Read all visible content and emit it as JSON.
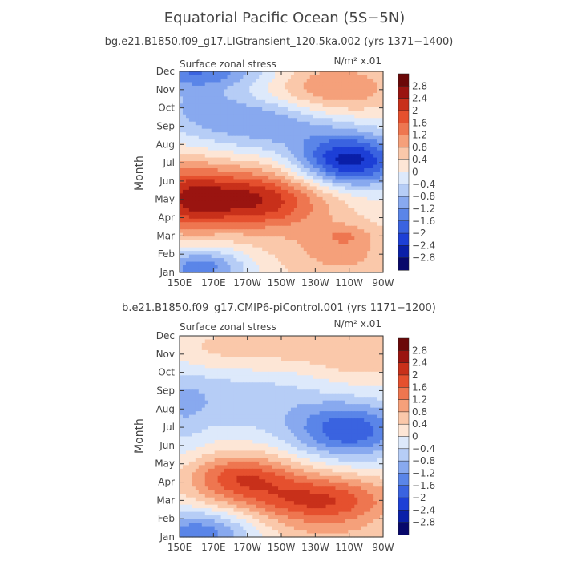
{
  "figure": {
    "title": "Equatorial Pacific Ocean (5S−5N)"
  },
  "colorbar_levels": [
    "2.8",
    "2.4",
    "2",
    "1.6",
    "1.2",
    "0.8",
    "0.4",
    "0",
    "−0.4",
    "−0.8",
    "−1.2",
    "−1.6",
    "−2",
    "−2.4",
    "−2.8"
  ],
  "palette": [
    "#08086b",
    "#0a1fa8",
    "#1d3fd6",
    "#3a63e0",
    "#5a85e8",
    "#88a9ef",
    "#b6cdf6",
    "#dde9fb",
    "#fde6d6",
    "#fac8aa",
    "#f5a07a",
    "#ee7650",
    "#e5502e",
    "#c8301a",
    "#9a1410",
    "#6b0808"
  ],
  "chart_data": [
    {
      "type": "contourf",
      "title": "bg.e21.B1850.f09_g17.LIGtransient_120.5ka.002 (yrs 1371−1400)",
      "left_label": "Surface zonal stress",
      "right_label": "N/m² x.01",
      "ylabel": "Month",
      "x_ticks": [
        "150E",
        "170E",
        "170W",
        "150W",
        "130W",
        "110W",
        "90W"
      ],
      "y_ticks": [
        "Jan",
        "Feb",
        "Mar",
        "Apr",
        "May",
        "Jun",
        "Jul",
        "Aug",
        "Sep",
        "Oct",
        "Nov",
        "Dec"
      ],
      "levels": [
        -2.8,
        -2.4,
        -2,
        -1.6,
        -1.2,
        -0.8,
        -0.4,
        0,
        0.4,
        0.8,
        1.2,
        1.6,
        2,
        2.4,
        2.8
      ],
      "features": [
        {
          "lon": 160,
          "month": 12.0,
          "amp": -1.4,
          "sx": 28,
          "sy": 0.6
        },
        {
          "lon": 242,
          "month": 11.0,
          "amp": 1.3,
          "sx": 26,
          "sy": 1.1
        },
        {
          "lon": 200,
          "month": 9.2,
          "amp": -1.2,
          "sx": 35,
          "sy": 1.0
        },
        {
          "lon": 250,
          "month": 7.1,
          "amp": -2.6,
          "sx": 22,
          "sy": 1.0
        },
        {
          "lon": 190,
          "month": 5.0,
          "amp": 2.5,
          "sx": 32,
          "sy": 1.2
        },
        {
          "lon": 152,
          "month": 5.1,
          "amp": 1.3,
          "sx": 16,
          "sy": 1.5
        },
        {
          "lon": 162,
          "month": 1.3,
          "amp": -1.5,
          "sx": 18,
          "sy": 0.7
        },
        {
          "lon": 245,
          "month": 2.0,
          "amp": 0.9,
          "sx": 30,
          "sy": 1.3
        },
        {
          "lon": 248,
          "month": 3.0,
          "amp": 0.5,
          "sx": 10,
          "sy": 0.4
        },
        {
          "lon": 160,
          "month": 10.5,
          "amp": -0.6,
          "sx": 20,
          "sy": 1.0
        }
      ]
    },
    {
      "type": "contourf",
      "title": "b.e21.B1850.f09_g17.CMIP6-piControl.001 (yrs 1171−1200)",
      "left_label": "Surface zonal stress",
      "right_label": "N/m² x.01",
      "ylabel": "Month",
      "x_ticks": [
        "150E",
        "170E",
        "170W",
        "150W",
        "130W",
        "110W",
        "90W"
      ],
      "y_ticks": [
        "Jan",
        "Feb",
        "Mar",
        "Apr",
        "May",
        "Jun",
        "Jul",
        "Aug",
        "Sep",
        "Oct",
        "Nov",
        "Dec"
      ],
      "levels": [
        -2.8,
        -2.4,
        -2,
        -1.6,
        -1.2,
        -0.8,
        -0.4,
        0,
        0.4,
        0.8,
        1.2,
        1.6,
        2,
        2.4,
        2.8
      ],
      "features": [
        {
          "lon": 195,
          "month": 11.3,
          "amp": 0.6,
          "sx": 50,
          "sy": 0.9
        },
        {
          "lon": 258,
          "month": 10.8,
          "amp": 0.5,
          "sx": 20,
          "sy": 1.2
        },
        {
          "lon": 250,
          "month": 6.8,
          "amp": -1.9,
          "sx": 24,
          "sy": 1.1
        },
        {
          "lon": 180,
          "month": 8.5,
          "amp": -0.7,
          "sx": 40,
          "sy": 1.2
        },
        {
          "lon": 185,
          "month": 4.3,
          "amp": 1.5,
          "sx": 22,
          "sy": 0.9
        },
        {
          "lon": 235,
          "month": 2.9,
          "amp": 1.6,
          "sx": 30,
          "sy": 0.9
        },
        {
          "lon": 215,
          "month": 3.6,
          "amp": 0.6,
          "sx": 40,
          "sy": 1.2
        },
        {
          "lon": 162,
          "month": 1.3,
          "amp": -1.5,
          "sx": 22,
          "sy": 0.8
        },
        {
          "lon": 240,
          "month": 1.0,
          "amp": 0.5,
          "sx": 30,
          "sy": 0.8
        },
        {
          "lon": 152,
          "month": 8.0,
          "amp": -0.4,
          "sx": 10,
          "sy": 2.0
        }
      ]
    }
  ]
}
